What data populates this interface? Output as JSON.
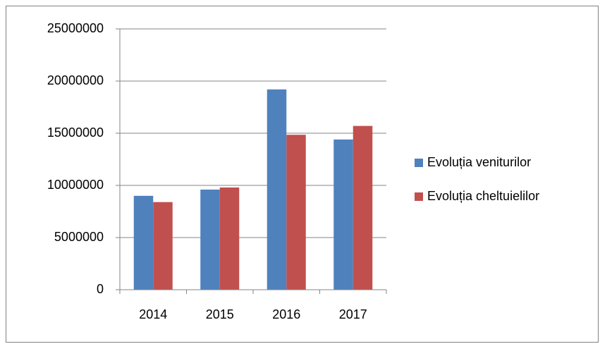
{
  "chart_data": {
    "type": "bar",
    "categories": [
      "2014",
      "2015",
      "2016",
      "2017"
    ],
    "series": [
      {
        "name": "Evoluția veniturilor",
        "color": "#4f81bd",
        "values": [
          9000000,
          9600000,
          19200000,
          14400000
        ]
      },
      {
        "name": "Evoluția cheltuielilor",
        "color": "#c0504d",
        "values": [
          8400000,
          9800000,
          14850000,
          15700000
        ]
      }
    ],
    "ylim": [
      0,
      25000000
    ],
    "yticks": [
      0,
      5000000,
      10000000,
      15000000,
      20000000,
      25000000
    ],
    "grid": true,
    "legend": "right"
  }
}
